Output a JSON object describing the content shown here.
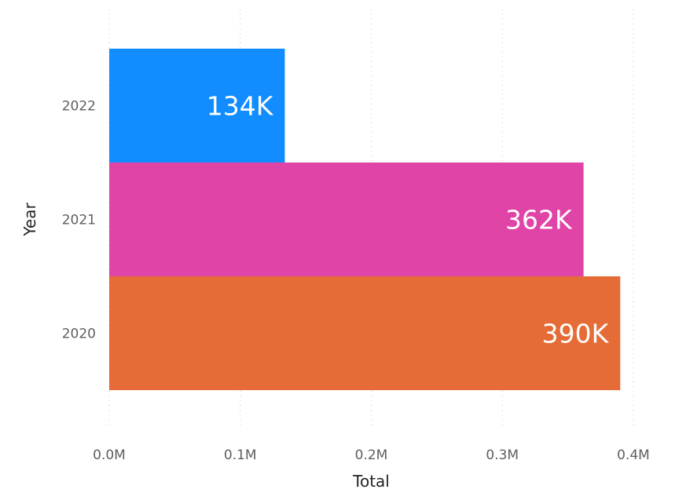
{
  "chart_data": {
    "type": "bar",
    "orientation": "horizontal",
    "categories": [
      "2022",
      "2021",
      "2020"
    ],
    "values": [
      134000,
      362000,
      390000
    ],
    "data_labels": [
      "134K",
      "362K",
      "390K"
    ],
    "colors": [
      "#118DFF",
      "#E044A7",
      "#E66C37"
    ],
    "xlabel": "Total",
    "ylabel": "Year",
    "xlim": [
      0,
      400000
    ],
    "xticks": [
      0,
      100000,
      200000,
      300000,
      400000
    ],
    "xtick_labels": [
      "0.0M",
      "0.1M",
      "0.2M",
      "0.3M",
      "0.4M"
    ],
    "grid": "vertical dotted",
    "legend": "none"
  }
}
